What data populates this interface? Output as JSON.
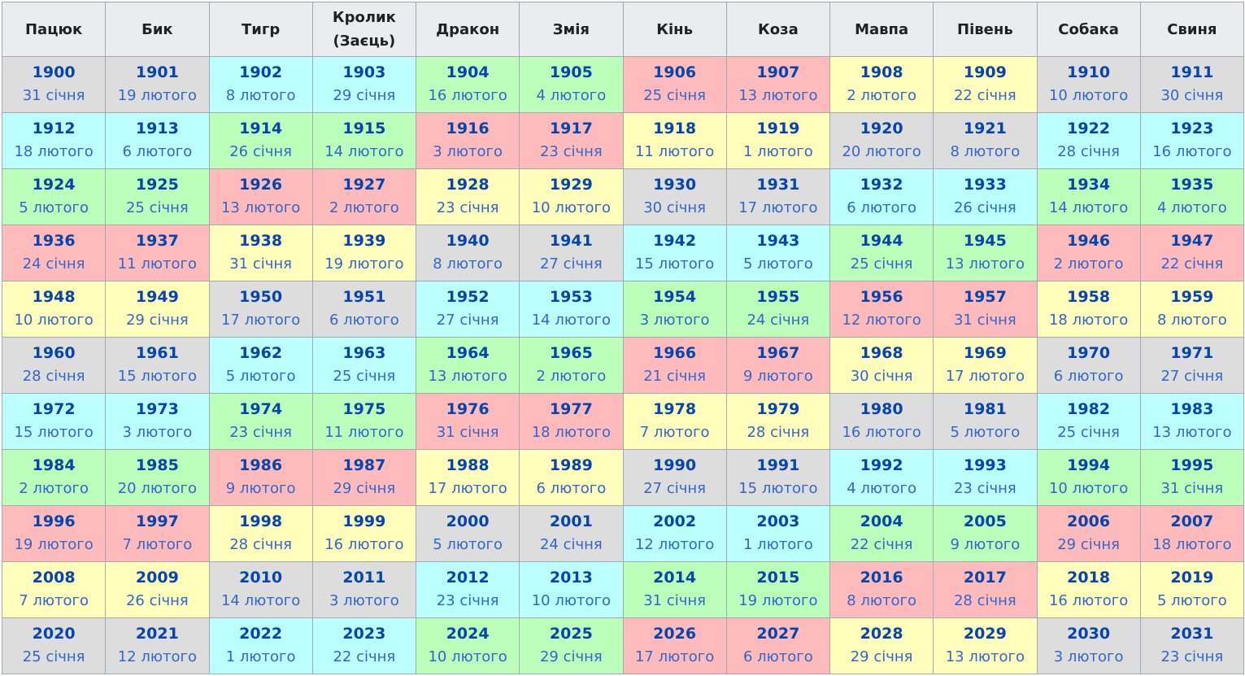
{
  "colors": {
    "gray": "#dddddd",
    "cyan": "#bbffff",
    "green": "#bbffbb",
    "pink": "#ffbbbb",
    "yellow": "#ffffbb",
    "header_bg": "#eaecf0",
    "link": "#0645ad"
  },
  "headers": [
    {
      "label": "Пацюк"
    },
    {
      "label": "Бик"
    },
    {
      "label": "Тигр"
    },
    {
      "label": "Кролик (Заєць)"
    },
    {
      "label": "Дракон"
    },
    {
      "label": "Змія"
    },
    {
      "label": "Кінь"
    },
    {
      "label": "Коза"
    },
    {
      "label": "Мавпа"
    },
    {
      "label": "Півень"
    },
    {
      "label": "Собака"
    },
    {
      "label": "Свиня"
    }
  ],
  "rows": [
    {
      "cells": [
        {
          "year": "1900",
          "date": "31 січня",
          "color": "gray"
        },
        {
          "year": "1901",
          "date": "19 лютого",
          "color": "gray"
        },
        {
          "year": "1902",
          "date": "8 лютого",
          "color": "cyan"
        },
        {
          "year": "1903",
          "date": "29 січня",
          "color": "cyan"
        },
        {
          "year": "1904",
          "date": "16 лютого",
          "color": "green"
        },
        {
          "year": "1905",
          "date": "4 лютого",
          "color": "green"
        },
        {
          "year": "1906",
          "date": "25 січня",
          "color": "pink"
        },
        {
          "year": "1907",
          "date": "13 лютого",
          "color": "pink"
        },
        {
          "year": "1908",
          "date": "2 лютого",
          "color": "yellow"
        },
        {
          "year": "1909",
          "date": "22 січня",
          "color": "yellow"
        },
        {
          "year": "1910",
          "date": "10 лютого",
          "color": "gray"
        },
        {
          "year": "1911",
          "date": "30 січня",
          "color": "gray"
        }
      ]
    },
    {
      "cells": [
        {
          "year": "1912",
          "date": "18 лютого",
          "color": "cyan"
        },
        {
          "year": "1913",
          "date": "6 лютого",
          "color": "cyan"
        },
        {
          "year": "1914",
          "date": "26 січня",
          "color": "green"
        },
        {
          "year": "1915",
          "date": "14 лютого",
          "color": "green"
        },
        {
          "year": "1916",
          "date": "3 лютого",
          "color": "pink"
        },
        {
          "year": "1917",
          "date": "23 січня",
          "color": "pink"
        },
        {
          "year": "1918",
          "date": "11 лютого",
          "color": "yellow"
        },
        {
          "year": "1919",
          "date": "1 лютого",
          "color": "yellow"
        },
        {
          "year": "1920",
          "date": "20 лютого",
          "color": "gray"
        },
        {
          "year": "1921",
          "date": "8 лютого",
          "color": "gray"
        },
        {
          "year": "1922",
          "date": "28 січня",
          "color": "cyan"
        },
        {
          "year": "1923",
          "date": "16 лютого",
          "color": "cyan"
        }
      ]
    },
    {
      "cells": [
        {
          "year": "1924",
          "date": "5 лютого",
          "color": "green"
        },
        {
          "year": "1925",
          "date": "25 січня",
          "color": "green"
        },
        {
          "year": "1926",
          "date": "13 лютого",
          "color": "pink"
        },
        {
          "year": "1927",
          "date": "2 лютого",
          "color": "pink"
        },
        {
          "year": "1928",
          "date": "23 січня",
          "color": "yellow"
        },
        {
          "year": "1929",
          "date": "10 лютого",
          "color": "yellow"
        },
        {
          "year": "1930",
          "date": "30 січня",
          "color": "gray"
        },
        {
          "year": "1931",
          "date": "17 лютого",
          "color": "gray"
        },
        {
          "year": "1932",
          "date": "6 лютого",
          "color": "cyan"
        },
        {
          "year": "1933",
          "date": "26 січня",
          "color": "cyan"
        },
        {
          "year": "1934",
          "date": "14 лютого",
          "color": "green"
        },
        {
          "year": "1935",
          "date": "4 лютого",
          "color": "green"
        }
      ]
    },
    {
      "cells": [
        {
          "year": "1936",
          "date": "24 січня",
          "color": "pink"
        },
        {
          "year": "1937",
          "date": "11 лютого",
          "color": "pink"
        },
        {
          "year": "1938",
          "date": "31 січня",
          "color": "yellow"
        },
        {
          "year": "1939",
          "date": "19 лютого",
          "color": "yellow"
        },
        {
          "year": "1940",
          "date": "8 лютого",
          "color": "gray"
        },
        {
          "year": "1941",
          "date": "27 січня",
          "color": "gray"
        },
        {
          "year": "1942",
          "date": "15 лютого",
          "color": "cyan"
        },
        {
          "year": "1943",
          "date": "5 лютого",
          "color": "cyan"
        },
        {
          "year": "1944",
          "date": "25 січня",
          "color": "green"
        },
        {
          "year": "1945",
          "date": "13 лютого",
          "color": "green"
        },
        {
          "year": "1946",
          "date": "2 лютого",
          "color": "pink"
        },
        {
          "year": "1947",
          "date": "22 січня",
          "color": "pink"
        }
      ]
    },
    {
      "cells": [
        {
          "year": "1948",
          "date": "10 лютого",
          "color": "yellow"
        },
        {
          "year": "1949",
          "date": "29 січня",
          "color": "yellow"
        },
        {
          "year": "1950",
          "date": "17 лютого",
          "color": "gray"
        },
        {
          "year": "1951",
          "date": "6 лютого",
          "color": "gray"
        },
        {
          "year": "1952",
          "date": "27 січня",
          "color": "cyan"
        },
        {
          "year": "1953",
          "date": "14 лютого",
          "color": "cyan"
        },
        {
          "year": "1954",
          "date": "3 лютого",
          "color": "green"
        },
        {
          "year": "1955",
          "date": "24 січня",
          "color": "green"
        },
        {
          "year": "1956",
          "date": "12 лютого",
          "color": "pink"
        },
        {
          "year": "1957",
          "date": "31 січня",
          "color": "pink"
        },
        {
          "year": "1958",
          "date": "18 лютого",
          "color": "yellow"
        },
        {
          "year": "1959",
          "date": "8 лютого",
          "color": "yellow"
        }
      ]
    },
    {
      "cells": [
        {
          "year": "1960",
          "date": "28 січня",
          "color": "gray"
        },
        {
          "year": "1961",
          "date": "15 лютого",
          "color": "gray"
        },
        {
          "year": "1962",
          "date": "5 лютого",
          "color": "cyan"
        },
        {
          "year": "1963",
          "date": "25 січня",
          "color": "cyan"
        },
        {
          "year": "1964",
          "date": "13 лютого",
          "color": "green"
        },
        {
          "year": "1965",
          "date": "2 лютого",
          "color": "green"
        },
        {
          "year": "1966",
          "date": "21 січня",
          "color": "pink"
        },
        {
          "year": "1967",
          "date": "9 лютого",
          "color": "pink"
        },
        {
          "year": "1968",
          "date": "30 січня",
          "color": "yellow"
        },
        {
          "year": "1969",
          "date": "17 лютого",
          "color": "yellow"
        },
        {
          "year": "1970",
          "date": "6 лютого",
          "color": "gray"
        },
        {
          "year": "1971",
          "date": "27 січня",
          "color": "gray"
        }
      ]
    },
    {
      "cells": [
        {
          "year": "1972",
          "date": "15 лютого",
          "color": "cyan"
        },
        {
          "year": "1973",
          "date": "3 лютого",
          "color": "cyan"
        },
        {
          "year": "1974",
          "date": "23 січня",
          "color": "green"
        },
        {
          "year": "1975",
          "date": "11 лютого",
          "color": "green"
        },
        {
          "year": "1976",
          "date": "31 січня",
          "color": "pink"
        },
        {
          "year": "1977",
          "date": "18 лютого",
          "color": "pink"
        },
        {
          "year": "1978",
          "date": "7 лютого",
          "color": "yellow"
        },
        {
          "year": "1979",
          "date": "28 січня",
          "color": "yellow"
        },
        {
          "year": "1980",
          "date": "16 лютого",
          "color": "gray"
        },
        {
          "year": "1981",
          "date": "5 лютого",
          "color": "gray"
        },
        {
          "year": "1982",
          "date": "25 січня",
          "color": "cyan"
        },
        {
          "year": "1983",
          "date": "13 лютого",
          "color": "cyan"
        }
      ]
    },
    {
      "cells": [
        {
          "year": "1984",
          "date": "2 лютого",
          "color": "green"
        },
        {
          "year": "1985",
          "date": "20 лютого",
          "color": "green"
        },
        {
          "year": "1986",
          "date": "9 лютого",
          "color": "pink"
        },
        {
          "year": "1987",
          "date": "29 січня",
          "color": "pink"
        },
        {
          "year": "1988",
          "date": "17 лютого",
          "color": "yellow"
        },
        {
          "year": "1989",
          "date": "6 лютого",
          "color": "yellow"
        },
        {
          "year": "1990",
          "date": "27 січня",
          "color": "gray"
        },
        {
          "year": "1991",
          "date": "15 лютого",
          "color": "gray"
        },
        {
          "year": "1992",
          "date": "4 лютого",
          "color": "cyan"
        },
        {
          "year": "1993",
          "date": "23 січня",
          "color": "cyan"
        },
        {
          "year": "1994",
          "date": "10 лютого",
          "color": "green"
        },
        {
          "year": "1995",
          "date": "31 січня",
          "color": "green"
        }
      ]
    },
    {
      "cells": [
        {
          "year": "1996",
          "date": "19 лютого",
          "color": "pink"
        },
        {
          "year": "1997",
          "date": "7 лютого",
          "color": "pink"
        },
        {
          "year": "1998",
          "date": "28 січня",
          "color": "yellow"
        },
        {
          "year": "1999",
          "date": "16 лютого",
          "color": "yellow"
        },
        {
          "year": "2000",
          "date": "5 лютого",
          "color": "gray"
        },
        {
          "year": "2001",
          "date": "24 січня",
          "color": "gray"
        },
        {
          "year": "2002",
          "date": "12 лютого",
          "color": "cyan"
        },
        {
          "year": "2003",
          "date": "1 лютого",
          "color": "cyan"
        },
        {
          "year": "2004",
          "date": "22 січня",
          "color": "green"
        },
        {
          "year": "2005",
          "date": "9 лютого",
          "color": "green"
        },
        {
          "year": "2006",
          "date": "29 січня",
          "color": "pink"
        },
        {
          "year": "2007",
          "date": "18 лютого",
          "color": "pink"
        }
      ]
    },
    {
      "cells": [
        {
          "year": "2008",
          "date": "7 лютого",
          "color": "yellow"
        },
        {
          "year": "2009",
          "date": "26 січня",
          "color": "yellow"
        },
        {
          "year": "2010",
          "date": "14 лютого",
          "color": "gray"
        },
        {
          "year": "2011",
          "date": "3 лютого",
          "color": "gray"
        },
        {
          "year": "2012",
          "date": "23 січня",
          "color": "cyan"
        },
        {
          "year": "2013",
          "date": "10 лютого",
          "color": "cyan"
        },
        {
          "year": "2014",
          "date": "31 січня",
          "color": "green"
        },
        {
          "year": "2015",
          "date": "19 лютого",
          "color": "green"
        },
        {
          "year": "2016",
          "date": "8 лютого",
          "color": "pink"
        },
        {
          "year": "2017",
          "date": "28 січня",
          "color": "pink"
        },
        {
          "year": "2018",
          "date": "16 лютого",
          "color": "yellow"
        },
        {
          "year": "2019",
          "date": "5 лютого",
          "color": "yellow"
        }
      ]
    },
    {
      "cells": [
        {
          "year": "2020",
          "date": "25 січня",
          "color": "gray"
        },
        {
          "year": "2021",
          "date": "12 лютого",
          "color": "gray"
        },
        {
          "year": "2022",
          "date": "1 лютого",
          "color": "cyan"
        },
        {
          "year": "2023",
          "date": "22 січня",
          "color": "cyan"
        },
        {
          "year": "2024",
          "date": "10 лютого",
          "color": "green"
        },
        {
          "year": "2025",
          "date": "29 січня",
          "color": "green"
        },
        {
          "year": "2026",
          "date": "17 лютого",
          "color": "pink"
        },
        {
          "year": "2027",
          "date": "6 лютого",
          "color": "pink"
        },
        {
          "year": "2028",
          "date": "29 січня",
          "color": "yellow"
        },
        {
          "year": "2029",
          "date": "13 лютого",
          "color": "yellow"
        },
        {
          "year": "2030",
          "date": "3 лютого",
          "color": "gray"
        },
        {
          "year": "2031",
          "date": "23 січня",
          "color": "gray"
        }
      ]
    }
  ]
}
